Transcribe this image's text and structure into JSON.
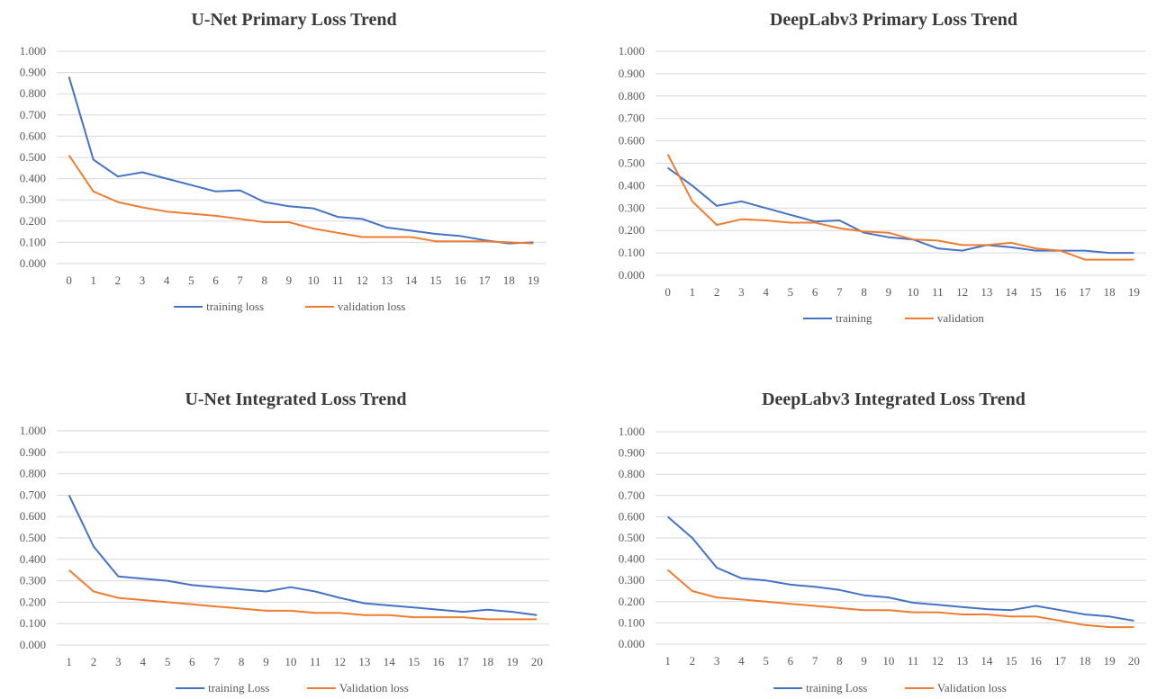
{
  "colors": {
    "training": "#4472c4",
    "validation": "#ed7d31",
    "grid": "#d9d9d9"
  },
  "chart_data": [
    {
      "type": "line",
      "title": "U-Net Primary Loss Trend",
      "x": [
        "0",
        "1",
        "2",
        "3",
        "4",
        "5",
        "6",
        "7",
        "8",
        "9",
        "10",
        "11",
        "12",
        "13",
        "14",
        "15",
        "16",
        "17",
        "18",
        "19"
      ],
      "ylim": [
        0,
        1
      ],
      "yticks": [
        "0.000",
        "0.100",
        "0.200",
        "0.300",
        "0.400",
        "0.500",
        "0.600",
        "0.700",
        "0.800",
        "0.900",
        "1.000"
      ],
      "grid": true,
      "legend_position": "bottom",
      "series": [
        {
          "name": "training loss",
          "values": [
            0.88,
            0.49,
            0.41,
            0.43,
            0.4,
            0.37,
            0.34,
            0.345,
            0.29,
            0.27,
            0.26,
            0.22,
            0.21,
            0.17,
            0.155,
            0.14,
            0.13,
            0.11,
            0.095,
            0.1
          ]
        },
        {
          "name": "validation loss",
          "values": [
            0.51,
            0.34,
            0.29,
            0.265,
            0.245,
            0.235,
            0.225,
            0.21,
            0.195,
            0.195,
            0.165,
            0.145,
            0.125,
            0.125,
            0.125,
            0.105,
            0.105,
            0.105,
            0.1,
            0.095
          ]
        }
      ]
    },
    {
      "type": "line",
      "title": "DeepLabv3 Primary Loss Trend",
      "x": [
        "0",
        "1",
        "2",
        "3",
        "4",
        "5",
        "6",
        "7",
        "8",
        "9",
        "10",
        "11",
        "12",
        "13",
        "14",
        "15",
        "16",
        "17",
        "18",
        "19"
      ],
      "ylim": [
        0,
        1
      ],
      "yticks": [
        "0.000",
        "0.100",
        "0.200",
        "0.300",
        "0.400",
        "0.500",
        "0.600",
        "0.700",
        "0.800",
        "0.900",
        "1.000"
      ],
      "grid": true,
      "legend_position": "bottom",
      "series": [
        {
          "name": "training",
          "values": [
            0.48,
            0.4,
            0.31,
            0.33,
            0.3,
            0.27,
            0.24,
            0.245,
            0.19,
            0.17,
            0.16,
            0.12,
            0.11,
            0.135,
            0.125,
            0.11,
            0.11,
            0.11,
            0.1,
            0.1
          ]
        },
        {
          "name": "validation",
          "values": [
            0.54,
            0.33,
            0.225,
            0.25,
            0.245,
            0.235,
            0.235,
            0.21,
            0.195,
            0.19,
            0.16,
            0.155,
            0.135,
            0.135,
            0.145,
            0.12,
            0.11,
            0.07,
            0.07,
            0.07
          ]
        }
      ]
    },
    {
      "type": "line",
      "title": "U-Net Integrated Loss Trend",
      "x": [
        "1",
        "2",
        "3",
        "4",
        "5",
        "6",
        "7",
        "8",
        "9",
        "10",
        "11",
        "12",
        "13",
        "14",
        "15",
        "16",
        "17",
        "18",
        "19",
        "20"
      ],
      "ylim": [
        0,
        1
      ],
      "yticks": [
        "0.000",
        "0.100",
        "0.200",
        "0.300",
        "0.400",
        "0.500",
        "0.600",
        "0.700",
        "0.800",
        "0.900",
        "1.000"
      ],
      "grid": true,
      "legend_position": "bottom",
      "series": [
        {
          "name": "training Loss",
          "values": [
            0.7,
            0.46,
            0.32,
            0.31,
            0.3,
            0.28,
            0.27,
            0.26,
            0.25,
            0.27,
            0.25,
            0.22,
            0.195,
            0.185,
            0.175,
            0.165,
            0.155,
            0.165,
            0.155,
            0.14
          ]
        },
        {
          "name": "Validation loss",
          "values": [
            0.35,
            0.25,
            0.22,
            0.21,
            0.2,
            0.19,
            0.18,
            0.17,
            0.16,
            0.16,
            0.15,
            0.15,
            0.14,
            0.14,
            0.13,
            0.13,
            0.13,
            0.12,
            0.12,
            0.12
          ]
        }
      ]
    },
    {
      "type": "line",
      "title": "DeepLabv3 Integrated Loss Trend",
      "x": [
        "1",
        "2",
        "3",
        "4",
        "5",
        "6",
        "7",
        "8",
        "9",
        "10",
        "11",
        "12",
        "13",
        "14",
        "15",
        "16",
        "17",
        "18",
        "19",
        "20"
      ],
      "ylim": [
        0,
        1
      ],
      "yticks": [
        "0.000",
        "0.100",
        "0.200",
        "0.300",
        "0.400",
        "0.500",
        "0.600",
        "0.700",
        "0.800",
        "0.900",
        "1.000"
      ],
      "grid": true,
      "legend_position": "bottom",
      "series": [
        {
          "name": "training Loss",
          "values": [
            0.6,
            0.5,
            0.36,
            0.31,
            0.3,
            0.28,
            0.27,
            0.255,
            0.23,
            0.22,
            0.195,
            0.185,
            0.175,
            0.165,
            0.16,
            0.18,
            0.16,
            0.14,
            0.13,
            0.11
          ]
        },
        {
          "name": "Validation loss",
          "values": [
            0.35,
            0.25,
            0.22,
            0.21,
            0.2,
            0.19,
            0.18,
            0.17,
            0.16,
            0.16,
            0.15,
            0.15,
            0.14,
            0.14,
            0.13,
            0.13,
            0.11,
            0.09,
            0.08,
            0.08
          ]
        }
      ]
    }
  ]
}
